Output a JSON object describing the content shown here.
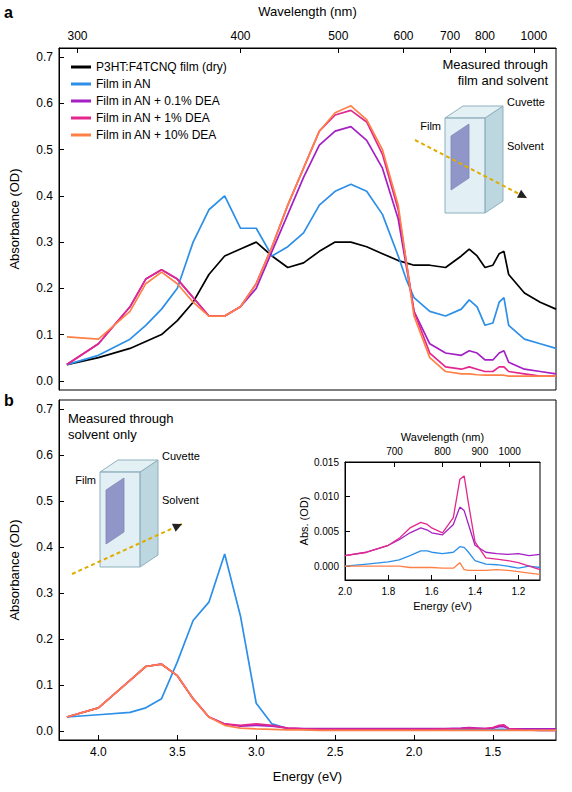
{
  "chart_data": [
    {
      "panel": "a",
      "type": "line",
      "annotation": "Measured through film and solvent",
      "diagram_labels": {
        "film": "Film",
        "cuvette": "Cuvette",
        "solvent": "Solvent"
      },
      "x2label": "Wavelength (nm)",
      "ylabel": "Absorbance (OD)",
      "xlim": [
        4.25,
        1.1
      ],
      "x2ticks": [
        300,
        400,
        500,
        600,
        700,
        800,
        1000
      ],
      "ylim": [
        -0.02,
        0.72
      ],
      "yticks": [
        {
          "value": 0,
          "label": "0.0"
        },
        0.1,
        0.2,
        0.3,
        0.4,
        0.5,
        0.6,
        0.7
      ],
      "legend": "upper left",
      "x": [
        4.2,
        4.0,
        3.8,
        3.7,
        3.6,
        3.5,
        3.4,
        3.3,
        3.2,
        3.1,
        3.0,
        2.9,
        2.8,
        2.7,
        2.6,
        2.5,
        2.4,
        2.3,
        2.2,
        2.1,
        2.05,
        2.0,
        1.9,
        1.8,
        1.7,
        1.65,
        1.6,
        1.55,
        1.5,
        1.46,
        1.43,
        1.4,
        1.3,
        1.2,
        1.1
      ],
      "series": [
        {
          "name": "P3HT:F4TCNQ film (dry)",
          "color": "#000000",
          "values": [
            0.035,
            0.05,
            0.07,
            0.085,
            0.1,
            0.13,
            0.17,
            0.23,
            0.27,
            0.285,
            0.3,
            0.27,
            0.245,
            0.255,
            0.28,
            0.3,
            0.3,
            0.29,
            0.275,
            0.26,
            0.255,
            0.25,
            0.25,
            0.245,
            0.27,
            0.285,
            0.27,
            0.245,
            0.25,
            0.275,
            0.28,
            0.23,
            0.19,
            0.17,
            0.155
          ]
        },
        {
          "name": "Film in AN",
          "color": "#2c8fe8",
          "values": [
            0.035,
            0.055,
            0.09,
            0.12,
            0.155,
            0.2,
            0.3,
            0.37,
            0.4,
            0.33,
            0.33,
            0.27,
            0.29,
            0.32,
            0.38,
            0.41,
            0.425,
            0.41,
            0.36,
            0.27,
            0.22,
            0.18,
            0.15,
            0.14,
            0.155,
            0.175,
            0.16,
            0.12,
            0.125,
            0.17,
            0.18,
            0.12,
            0.09,
            0.08,
            0.07
          ]
        },
        {
          "name": "Film in AN + 0.1% DEA",
          "color": "#a41fc4",
          "values": [
            0.035,
            0.08,
            0.16,
            0.22,
            0.24,
            0.22,
            0.18,
            0.14,
            0.14,
            0.16,
            0.2,
            0.28,
            0.36,
            0.44,
            0.51,
            0.54,
            0.55,
            0.52,
            0.46,
            0.35,
            0.25,
            0.15,
            0.08,
            0.06,
            0.055,
            0.065,
            0.06,
            0.045,
            0.045,
            0.06,
            0.065,
            0.04,
            0.025,
            0.02,
            0.015
          ]
        },
        {
          "name": "Film in AN + 1% DEA",
          "color": "#e3278f",
          "values": [
            0.035,
            0.08,
            0.16,
            0.22,
            0.24,
            0.22,
            0.18,
            0.14,
            0.14,
            0.16,
            0.21,
            0.29,
            0.38,
            0.46,
            0.54,
            0.575,
            0.585,
            0.56,
            0.49,
            0.37,
            0.26,
            0.15,
            0.06,
            0.03,
            0.025,
            0.03,
            0.025,
            0.02,
            0.02,
            0.03,
            0.03,
            0.02,
            0.015,
            0.01,
            0.01
          ]
        },
        {
          "name": "Film in AN + 10% DEA",
          "color": "#ff8046",
          "values": [
            0.095,
            0.09,
            0.15,
            0.21,
            0.235,
            0.21,
            0.17,
            0.14,
            0.14,
            0.16,
            0.21,
            0.29,
            0.38,
            0.46,
            0.54,
            0.58,
            0.595,
            0.565,
            0.5,
            0.38,
            0.26,
            0.14,
            0.05,
            0.02,
            0.015,
            0.015,
            0.013,
            0.012,
            0.012,
            0.012,
            0.012,
            0.01,
            0.01,
            0.01,
            0.01
          ]
        }
      ]
    },
    {
      "panel": "b",
      "type": "line",
      "annotation": "Measured through solvent only",
      "diagram_labels": {
        "film": "Film",
        "cuvette": "Cuvette",
        "solvent": "Solvent"
      },
      "xlabel": "Energy (eV)",
      "ylabel": "Absorbance (OD)",
      "xlim": [
        4.25,
        1.1
      ],
      "xticks": [
        {
          "value": 4,
          "label": "4.0"
        },
        3.5,
        {
          "value": 3,
          "label": "3.0"
        },
        2.5,
        {
          "value": 2,
          "label": "2.0"
        },
        1.5
      ],
      "ylim": [
        -0.02,
        0.72
      ],
      "yticks": [
        {
          "value": 0,
          "label": "0.0"
        },
        0.1,
        0.2,
        0.3,
        0.4,
        0.5,
        0.6,
        0.7
      ],
      "x": [
        4.2,
        4.0,
        3.8,
        3.7,
        3.6,
        3.5,
        3.4,
        3.3,
        3.2,
        3.1,
        3.0,
        2.9,
        2.8,
        2.7,
        2.6,
        2.5,
        2.4,
        2.3,
        2.2,
        2.1,
        2.05,
        2.0,
        1.9,
        1.8,
        1.7,
        1.65,
        1.6,
        1.55,
        1.5,
        1.46,
        1.43,
        1.4,
        1.3,
        1.2,
        1.1
      ],
      "series": [
        {
          "name": "Film in AN",
          "color": "#2c8fe8",
          "values": [
            0.03,
            0.035,
            0.04,
            0.05,
            0.07,
            0.15,
            0.24,
            0.28,
            0.385,
            0.25,
            0.06,
            0.015,
            0.005,
            0.003,
            0.002,
            0.002,
            0.002,
            0.002,
            0.002,
            0.002,
            0.002,
            0.002,
            0.002,
            0.002,
            0.002,
            0.003,
            0.002,
            0.002,
            0.002,
            0.003,
            0.003,
            0.002,
            0.002,
            0.001,
            0.001
          ]
        },
        {
          "name": "Film in AN + 0.1% DEA",
          "color": "#a41fc4",
          "values": [
            0.03,
            0.05,
            0.11,
            0.14,
            0.145,
            0.12,
            0.07,
            0.03,
            0.015,
            0.01,
            0.012,
            0.01,
            0.006,
            0.005,
            0.005,
            0.005,
            0.005,
            0.005,
            0.005,
            0.005,
            0.005,
            0.005,
            0.005,
            0.005,
            0.006,
            0.007,
            0.006,
            0.005,
            0.006,
            0.009,
            0.009,
            0.005,
            0.004,
            0.004,
            0.004
          ]
        },
        {
          "name": "Film in AN + 1% DEA",
          "color": "#e3278f",
          "values": [
            0.03,
            0.05,
            0.11,
            0.14,
            0.145,
            0.12,
            0.07,
            0.03,
            0.015,
            0.012,
            0.015,
            0.012,
            0.006,
            0.004,
            0.003,
            0.003,
            0.003,
            0.003,
            0.003,
            0.003,
            0.003,
            0.003,
            0.003,
            0.004,
            0.005,
            0.006,
            0.005,
            0.005,
            0.007,
            0.012,
            0.013,
            0.005,
            0.002,
            0.001,
            0.001
          ]
        },
        {
          "name": "Film in AN + 10% DEA",
          "color": "#ff8046",
          "values": [
            0.03,
            0.05,
            0.11,
            0.14,
            0.145,
            0.12,
            0.07,
            0.03,
            0.012,
            0.006,
            0.004,
            0.003,
            0.002,
            0.002,
            0.001,
            0.001,
            0.001,
            0.001,
            0.001,
            0.001,
            0.001,
            0.001,
            0.001,
            0.001,
            0.001,
            0.001,
            0.001,
            0.001,
            0.001,
            0.001,
            0.001,
            0.001,
            0.001,
            0.001,
            0.001
          ]
        }
      ]
    },
    {
      "type": "line",
      "xlabel": "Energy (eV)",
      "x2label": "Wavelength (nm)",
      "ylabel": "Abs. (OD)",
      "xlim": [
        2.0,
        1.1
      ],
      "xticks": [
        {
          "value": 2,
          "label": "2.0"
        },
        1.8,
        1.6,
        1.4,
        1.2
      ],
      "x2ticks": [
        700,
        800,
        900,
        1000
      ],
      "ylim": [
        -0.002,
        0.015
      ],
      "yticks": [
        {
          "value": 0,
          "label": "0.000"
        },
        0.005,
        {
          "value": 0.01,
          "label": "0.010"
        },
        0.015
      ],
      "x": [
        2.0,
        1.9,
        1.8,
        1.75,
        1.7,
        1.65,
        1.62,
        1.6,
        1.55,
        1.5,
        1.47,
        1.45,
        1.43,
        1.4,
        1.35,
        1.3,
        1.25,
        1.2,
        1.15,
        1.1
      ],
      "series": [
        {
          "name": "Film in AN",
          "color": "#2c8fe8",
          "values": [
            0.0,
            0.0003,
            0.0006,
            0.0009,
            0.0015,
            0.0022,
            0.0022,
            0.002,
            0.0018,
            0.002,
            0.0028,
            0.0027,
            0.002,
            0.0008,
            0.0003,
            0.0002,
            0.0,
            -0.0003,
            0.0,
            -0.0002
          ]
        },
        {
          "name": "Film in AN + 0.1% DEA",
          "color": "#a41fc4",
          "values": [
            0.0015,
            0.002,
            0.003,
            0.0038,
            0.0048,
            0.0055,
            0.0052,
            0.0048,
            0.0045,
            0.006,
            0.0085,
            0.008,
            0.006,
            0.003,
            0.002,
            0.0018,
            0.0017,
            0.0018,
            0.0015,
            0.0017
          ]
        },
        {
          "name": "Film in AN + 1% DEA",
          "color": "#e3278f",
          "values": [
            0.0015,
            0.002,
            0.003,
            0.004,
            0.0055,
            0.0063,
            0.006,
            0.0055,
            0.0048,
            0.007,
            0.0125,
            0.013,
            0.009,
            0.0035,
            0.0012,
            0.001,
            0.0008,
            0.0005,
            0.0,
            -0.0005
          ]
        },
        {
          "name": "Film in AN + 10% DEA",
          "color": "#ff8046",
          "values": [
            0.0,
            0.0,
            0.0,
            0.0,
            -0.0002,
            -0.0002,
            -0.0002,
            -0.0002,
            -0.0003,
            -0.0003,
            0.0005,
            -0.0005,
            -0.0006,
            -0.0006,
            -0.0006,
            -0.0005,
            -0.0006,
            -0.0008,
            -0.001,
            -0.0012
          ]
        }
      ]
    }
  ]
}
